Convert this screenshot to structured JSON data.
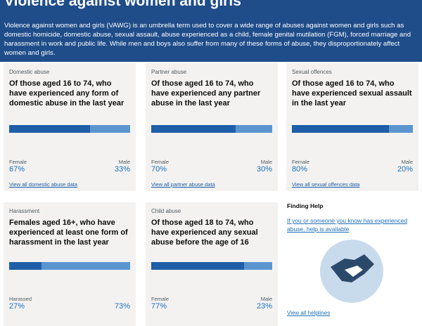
{
  "header": {
    "title": "Violence against women and girls",
    "intro": "Violence against women and girls (VAWG) is an umbrella term used to cover a wide range of abuses against women and girls such as domestic homicide, domestic abuse, sexual assault, abuse experienced as a child, female genital mutilation (FGM), forced marriage and harassment in work and public life. While men and boys also suffer from many of these forms of abuse, they disproportionately affect women and girls."
  },
  "cards": [
    {
      "category": "Domestic abuse",
      "heading": "Of those aged 16 to 74, who have experienced any form of domestic abuse in the last year",
      "labels": [
        "Female",
        "Male"
      ],
      "values": [
        67,
        33
      ],
      "value_labels": [
        "67%",
        "33%"
      ],
      "link": "View all domestic abuse data"
    },
    {
      "category": "Partner abuse",
      "heading": "Of those aged 16 to 74, who have experienced any partner abuse in the last year",
      "labels": [
        "Female",
        "Male"
      ],
      "values": [
        70,
        30
      ],
      "value_labels": [
        "70%",
        "30%"
      ],
      "link": "View all partner abuse data"
    },
    {
      "category": "Sexual offences",
      "heading": "Of those aged 16 to 74, who have experienced sexual assault in the last year",
      "labels": [
        "Female",
        "Male"
      ],
      "values": [
        80,
        20
      ],
      "value_labels": [
        "80%",
        "20%"
      ],
      "link": "View all sexual offences data"
    },
    {
      "category": "Harassment",
      "heading": "Females aged 16+, who have experienced at least one form of harassment in the last year",
      "labels": [
        "Harassed"
      ],
      "values": [
        27,
        73
      ],
      "value_labels": [
        "27%",
        "73%"
      ]
    },
    {
      "category": "Child abuse",
      "heading": "Of those aged 18 to 74, who have experienced any sexual abuse before the age of 16",
      "labels": [
        "Female",
        "Male"
      ],
      "values": [
        77,
        23
      ],
      "value_labels": [
        "77%",
        "23%"
      ]
    }
  ],
  "help": {
    "title": "Finding Help",
    "link": "If you or someone you know has experienced abuse, help is available",
    "more": "View all helplines"
  }
}
